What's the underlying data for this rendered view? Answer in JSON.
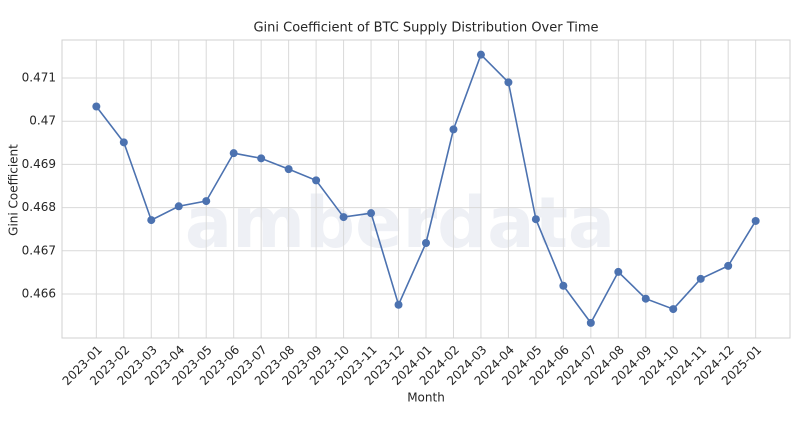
{
  "chart_data": {
    "type": "line",
    "title": "Gini Coefficient of BTC Supply Distribution Over Time",
    "watermark": "amberdata",
    "x_label": "Month",
    "y_label": "Gini Coefficient",
    "categories": [
      "2023-01",
      "2023-02",
      "2023-03",
      "2023-04",
      "2023-05",
      "2023-06",
      "2023-07",
      "2023-08",
      "2023-09",
      "2023-10",
      "2023-11",
      "2023-12",
      "2024-01",
      "2024-02",
      "2024-03",
      "2024-04",
      "2024-05",
      "2024-06",
      "2024-07",
      "2024-08",
      "2024-09",
      "2024-10",
      "2024-11",
      "2024-12",
      "2025-01"
    ],
    "series": [
      {
        "name": "Gini Coefficient",
        "color": "#4c72b0",
        "values": [
          0.47034,
          0.46951,
          0.46771,
          0.46803,
          0.46815,
          0.46926,
          0.46914,
          0.46889,
          0.46863,
          0.46778,
          0.46787,
          0.46575,
          0.46718,
          0.46981,
          0.47154,
          0.4709,
          0.46773,
          0.46619,
          0.46533,
          0.46651,
          0.46589,
          0.46565,
          0.46635,
          0.46665,
          0.46769
        ]
      }
    ],
    "ylim": [
      0.46498,
      0.47188
    ],
    "yticks": [
      0.466,
      0.467,
      0.468,
      0.469,
      0.47,
      0.471
    ],
    "grid": true
  }
}
